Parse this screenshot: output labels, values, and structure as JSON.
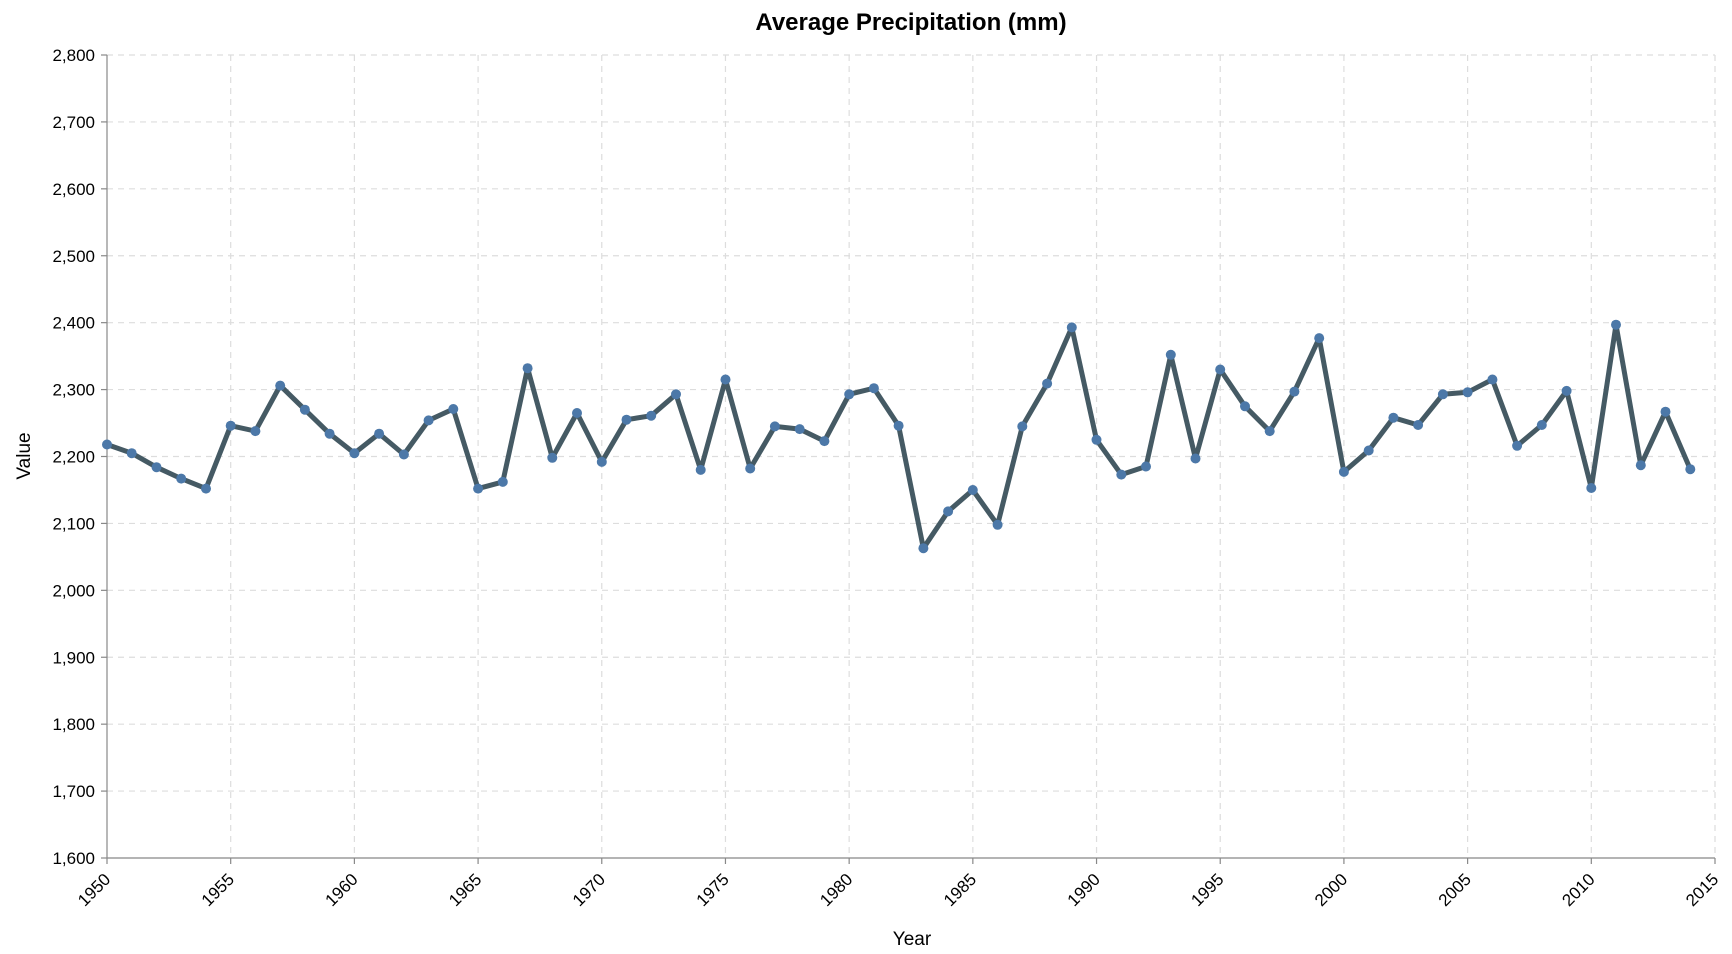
{
  "chart_data": {
    "type": "line",
    "title": "Average Precipitation (mm)",
    "xlabel": "Year",
    "ylabel": "Value",
    "xlim": [
      1950,
      2015
    ],
    "ylim": [
      1600,
      2800
    ],
    "x_ticks": [
      "1950",
      "1955",
      "1960",
      "1965",
      "1970",
      "1975",
      "1980",
      "1985",
      "1990",
      "1995",
      "2000",
      "2005",
      "2010",
      "2015"
    ],
    "y_ticks": [
      "1,600",
      "1,700",
      "1,800",
      "1,900",
      "2,000",
      "2,100",
      "2,200",
      "2,300",
      "2,400",
      "2,500",
      "2,600",
      "2,700",
      "2,800"
    ],
    "grid": true,
    "line_color": "#455a64",
    "point_color": "#4c78a8",
    "x": [
      1950,
      1951,
      1952,
      1953,
      1954,
      1955,
      1956,
      1957,
      1958,
      1959,
      1960,
      1961,
      1962,
      1963,
      1964,
      1965,
      1966,
      1967,
      1968,
      1969,
      1970,
      1971,
      1972,
      1973,
      1974,
      1975,
      1976,
      1977,
      1978,
      1979,
      1980,
      1981,
      1982,
      1983,
      1984,
      1985,
      1986,
      1987,
      1988,
      1989,
      1990,
      1991,
      1992,
      1993,
      1994,
      1995,
      1996,
      1997,
      1998,
      1999,
      2000,
      2001,
      2002,
      2003,
      2004,
      2005,
      2006,
      2007,
      2008,
      2009,
      2010,
      2011,
      2012,
      2013,
      2014
    ],
    "values": [
      2218,
      2205,
      2184,
      2167,
      2152,
      2246,
      2238,
      2306,
      2270,
      2234,
      2205,
      2234,
      2203,
      2254,
      2271,
      2152,
      2162,
      2332,
      2198,
      2265,
      2192,
      2255,
      2261,
      2293,
      2180,
      2315,
      2182,
      2245,
      2241,
      2223,
      2293,
      2302,
      2246,
      2063,
      2118,
      2150,
      2098,
      2245,
      2309,
      2393,
      2225,
      2173,
      2185,
      2352,
      2197,
      2330,
      2275,
      2238,
      2297,
      2377,
      2177,
      2209,
      2258,
      2247,
      2293,
      2296,
      2315,
      2216,
      2247,
      2298,
      2153,
      2397,
      2187,
      2267,
      2181
    ]
  }
}
